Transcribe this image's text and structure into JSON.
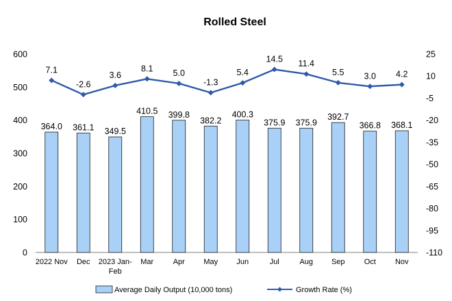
{
  "chart_data": {
    "type": "bar",
    "title": "Rolled Steel",
    "categories": [
      [
        "2022 Nov"
      ],
      [
        "Dec"
      ],
      [
        "2023 Jan-",
        "Feb"
      ],
      [
        "Mar"
      ],
      [
        "Apr"
      ],
      [
        "May"
      ],
      [
        "Jun"
      ],
      [
        "Jul"
      ],
      [
        "Aug"
      ],
      [
        "Sep"
      ],
      [
        "Oct"
      ],
      [
        "Nov"
      ]
    ],
    "series": [
      {
        "name": "Average Daily Output (10,000 tons)",
        "type": "bar",
        "axis": "left",
        "color": "#a9d1f7",
        "values": [
          364.0,
          361.1,
          349.5,
          410.5,
          399.8,
          382.2,
          400.3,
          375.9,
          375.9,
          392.7,
          366.8,
          368.1
        ],
        "labels": [
          "364.0",
          "361.1",
          "349.5",
          "410.5",
          "399.8",
          "382.2",
          "400.3",
          "375.9",
          "375.9",
          "392.7",
          "366.8",
          "368.1"
        ]
      },
      {
        "name": "Growth Rate (%)",
        "type": "line",
        "axis": "right",
        "color": "#2e5aa8",
        "values": [
          7.1,
          -2.6,
          3.6,
          8.1,
          5.0,
          -1.3,
          5.4,
          14.5,
          11.4,
          5.5,
          3.0,
          4.2
        ],
        "labels": [
          "7.1",
          "-2.6",
          "3.6",
          "8.1",
          "5.0",
          "-1.3",
          "5.4",
          "14.5",
          "11.4",
          "5.5",
          "3.0",
          "4.2"
        ]
      }
    ],
    "y_left": {
      "min": 0,
      "max": 600,
      "step": 100,
      "ticks": [
        "0",
        "100",
        "200",
        "300",
        "400",
        "500",
        "600"
      ]
    },
    "y_right": {
      "min": -110,
      "max": 25,
      "step": 15,
      "ticks": [
        "-110",
        "-95",
        "-80",
        "-65",
        "-50",
        "-35",
        "-20",
        "-5",
        "10",
        "25"
      ]
    },
    "grid": false,
    "legend_position": "bottom"
  }
}
